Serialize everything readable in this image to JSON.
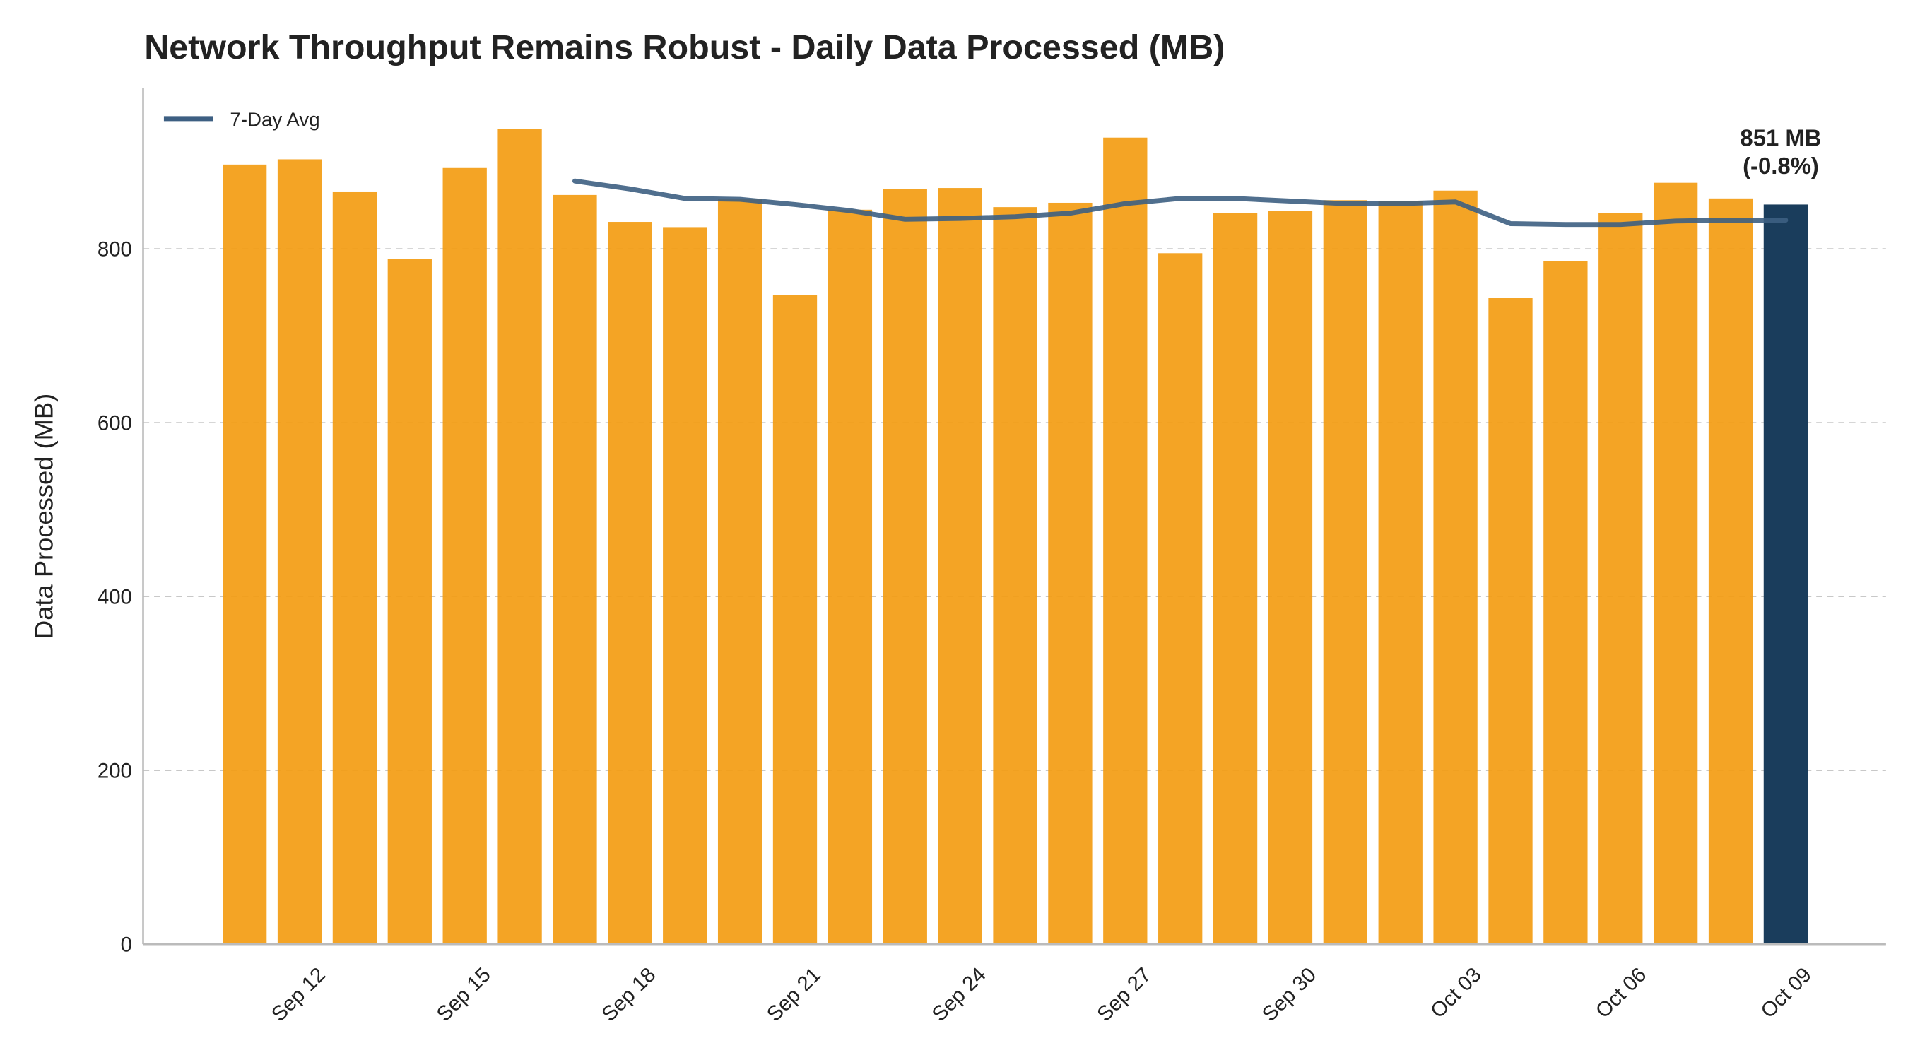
{
  "chart_data": {
    "type": "bar",
    "title": "Network Throughput Remains Robust - Daily Data Processed (MB)",
    "ylabel": "Data Processed (MB)",
    "categories": [
      null,
      "Sep 12",
      null,
      null,
      "Sep 15",
      null,
      null,
      "Sep 18",
      null,
      null,
      "Sep 21",
      null,
      null,
      "Sep 24",
      null,
      null,
      "Sep 27",
      null,
      null,
      "Sep 30",
      null,
      null,
      "Oct 03",
      null,
      null,
      "Oct 06",
      null,
      null,
      "Oct 09"
    ],
    "series": [
      {
        "name": null,
        "type": "bar",
        "color": "#f39c12",
        "highlight_color": "#1a3d5c",
        "values": [
          897,
          903,
          866,
          788,
          893,
          938,
          862,
          831,
          825,
          857,
          747,
          845,
          869,
          870,
          848,
          853,
          928,
          795,
          841,
          844,
          856,
          855,
          867,
          744,
          786,
          841,
          876,
          858,
          851
        ]
      },
      {
        "name": "7-Day Avg",
        "type": "line",
        "color": "#3d5f82",
        "values": [
          null,
          null,
          null,
          null,
          null,
          null,
          878,
          869,
          858,
          857,
          851,
          844,
          834,
          835,
          837,
          841,
          852,
          858,
          858,
          855,
          852,
          852,
          854,
          829,
          828,
          828,
          832,
          833,
          833
        ]
      }
    ],
    "annotation": [
      "851 MB",
      "(-0.8%)"
    ],
    "ylim": [
      0,
      985
    ],
    "yticks": [
      0,
      200,
      400,
      600,
      800
    ],
    "grid": true,
    "legend": "upper left"
  }
}
